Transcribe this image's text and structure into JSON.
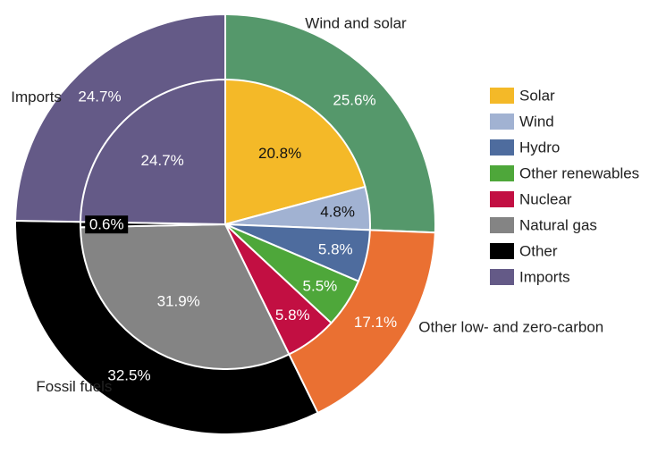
{
  "chart_data": {
    "type": "pie",
    "subtype": "nested-donut",
    "outer_ring": {
      "slices": [
        {
          "label": "Wind and solar",
          "value": 25.6,
          "value_label": "25.6%",
          "color": "#55986B"
        },
        {
          "label": "Other low- and zero-carbon",
          "value": 17.1,
          "value_label": "17.1%",
          "color": "#EA7032"
        },
        {
          "label": "Fossil fuels",
          "value": 32.5,
          "value_label": "32.5%",
          "color": "#000000"
        },
        {
          "label": "Imports",
          "value": 24.7,
          "value_label": "24.7%",
          "color": "#645A87"
        }
      ]
    },
    "inner_pie": {
      "slices": [
        {
          "label": "Solar",
          "value": 20.8,
          "value_label": "20.8%",
          "color": "#F4B928"
        },
        {
          "label": "Wind",
          "value": 4.8,
          "value_label": "4.8%",
          "color": "#A1B2D2"
        },
        {
          "label": "Hydro",
          "value": 5.8,
          "value_label": "5.8%",
          "color": "#4E6C9E"
        },
        {
          "label": "Other renewables",
          "value": 5.5,
          "value_label": "5.5%",
          "color": "#4EA73A"
        },
        {
          "label": "Nuclear",
          "value": 5.8,
          "value_label": "5.8%",
          "color": "#C20F42"
        },
        {
          "label": "Natural gas",
          "value": 31.9,
          "value_label": "31.9%",
          "color": "#848484"
        },
        {
          "label": "Other",
          "value": 0.6,
          "value_label": "0.6%",
          "color": "#000000"
        },
        {
          "label": "Imports",
          "value": 24.7,
          "value_label": "24.7%",
          "color": "#645A87"
        }
      ]
    },
    "legend": {
      "position": "right",
      "items": [
        "Solar",
        "Wind",
        "Hydro",
        "Other renewables",
        "Nuclear",
        "Natural gas",
        "Other",
        "Imports"
      ]
    }
  }
}
